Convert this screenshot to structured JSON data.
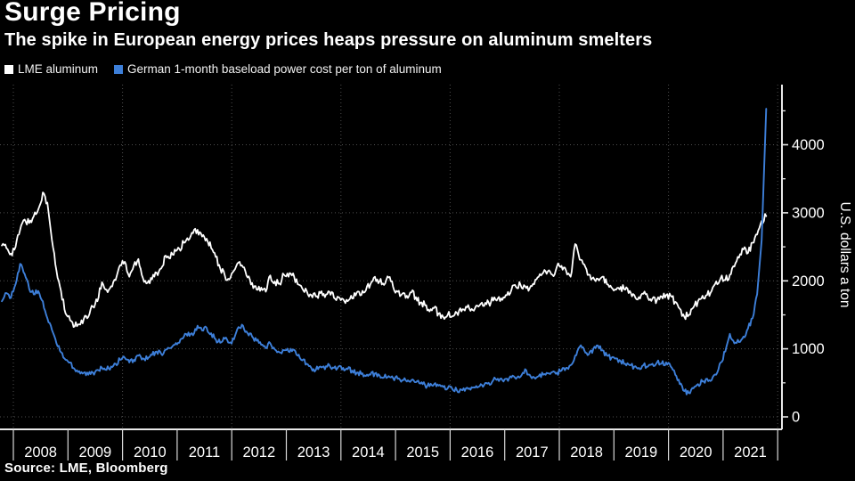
{
  "header": {
    "title": "Surge Pricing",
    "subtitle": "The spike in European energy prices heaps pressure on aluminum smelters"
  },
  "legend": [
    {
      "label": "LME aluminum",
      "color": "#ffffff"
    },
    {
      "label": "German 1-month baseload power cost per ton of aluminum",
      "color": "#3d7fd9"
    }
  ],
  "source": "Source: LME, Bloomberg",
  "colors": {
    "background": "#000000",
    "text": "#ffffff",
    "grid": "#4e4e4e",
    "axis": "#e8e8e8",
    "series_white": "#ffffff",
    "series_blue": "#3d7fd9"
  },
  "chart_data": {
    "type": "line",
    "title": "Surge Pricing",
    "subtitle": "The spike in European energy prices heaps pressure on aluminum smelters",
    "xlabel": "",
    "ylabel": "U.S. dollars a ton",
    "ylim": [
      0,
      4800
    ],
    "y_ticks": [
      0,
      1000,
      2000,
      3000,
      4000
    ],
    "y_minor_ticks": [
      500,
      1500,
      2500,
      3500,
      4500
    ],
    "x_tick_years": [
      2008,
      2009,
      2010,
      2011,
      2012,
      2013,
      2014,
      2015,
      2016,
      2017,
      2018,
      2019,
      2020,
      2021
    ],
    "grid_years": [
      2008,
      2010,
      2012,
      2014,
      2016,
      2018,
      2020,
      2022
    ],
    "x_start": 2007.79,
    "x_step_years": 0.0833333,
    "grid": true,
    "legend_position": "top-left",
    "series": [
      {
        "name": "LME aluminum",
        "color": "#ffffff",
        "values": [
          2520,
          2480,
          2400,
          2500,
          2750,
          2900,
          2850,
          2950,
          3050,
          3300,
          3150,
          2600,
          2150,
          1850,
          1520,
          1420,
          1330,
          1360,
          1440,
          1470,
          1620,
          1700,
          1980,
          1870,
          1920,
          2010,
          2230,
          2280,
          2060,
          2230,
          2320,
          2040,
          1970,
          2020,
          2120,
          2180,
          2370,
          2330,
          2460,
          2470,
          2560,
          2600,
          2700,
          2750,
          2650,
          2620,
          2480,
          2350,
          2180,
          2080,
          2020,
          2150,
          2270,
          2200,
          2050,
          1970,
          1870,
          1900,
          1840,
          2080,
          1990,
          1960,
          2090,
          2060,
          2110,
          1950,
          1890,
          1850,
          1790,
          1770,
          1820,
          1760,
          1840,
          1750,
          1760,
          1730,
          1700,
          1740,
          1830,
          1790,
          1860,
          1950,
          2060,
          1990,
          1940,
          2050,
          1910,
          1840,
          1810,
          1780,
          1830,
          1760,
          1680,
          1640,
          1550,
          1600,
          1520,
          1470,
          1500,
          1480,
          1530,
          1550,
          1620,
          1560,
          1600,
          1640,
          1630,
          1680,
          1710,
          1740,
          1720,
          1790,
          1870,
          1910,
          1940,
          1920,
          1890,
          1950,
          2060,
          2120,
          2140,
          2090,
          2210,
          2220,
          2150,
          2060,
          2540,
          2310,
          2240,
          2090,
          2050,
          2030,
          2060,
          1950,
          1900,
          1870,
          1910,
          1870,
          1850,
          1790,
          1760,
          1810,
          1750,
          1740,
          1720,
          1770,
          1790,
          1780,
          1690,
          1590,
          1470,
          1500,
          1610,
          1700,
          1780,
          1790,
          1850,
          1990,
          2040,
          2010,
          2090,
          2210,
          2340,
          2460,
          2410,
          2560,
          2680,
          2880,
          2950
        ]
      },
      {
        "name": "German 1-month baseload power cost per ton of aluminum",
        "color": "#3d7fd9",
        "values": [
          1700,
          1820,
          1750,
          1950,
          2250,
          2100,
          1880,
          1800,
          1850,
          1700,
          1450,
          1280,
          1080,
          950,
          840,
          800,
          700,
          670,
          650,
          620,
          650,
          690,
          720,
          690,
          740,
          780,
          840,
          870,
          800,
          840,
          900,
          860,
          850,
          910,
          960,
          930,
          990,
          1010,
          1060,
          1090,
          1180,
          1240,
          1200,
          1340,
          1270,
          1310,
          1230,
          1140,
          1090,
          1150,
          1090,
          1140,
          1320,
          1340,
          1230,
          1180,
          1120,
          1060,
          1010,
          1080,
          990,
          950,
          980,
          960,
          990,
          900,
          830,
          780,
          720,
          690,
          740,
          700,
          760,
          720,
          740,
          720,
          700,
          680,
          650,
          630,
          600,
          620,
          640,
          610,
          580,
          600,
          570,
          560,
          540,
          520,
          540,
          510,
          490,
          470,
          450,
          480,
          460,
          440,
          420,
          410,
          390,
          400,
          420,
          400,
          430,
          450,
          470,
          500,
          540,
          560,
          540,
          560,
          580,
          560,
          590,
          700,
          620,
          580,
          600,
          620,
          640,
          660,
          650,
          680,
          720,
          760,
          900,
          1030,
          980,
          920,
          1000,
          1050,
          980,
          900,
          870,
          860,
          820,
          780,
          760,
          740,
          720,
          760,
          740,
          780,
          800,
          780,
          800,
          740,
          620,
          480,
          380,
          350,
          420,
          480,
          520,
          560,
          540,
          620,
          800,
          960,
          1220,
          1080,
          1100,
          1180,
          1300,
          1450,
          1800,
          2600,
          4530
        ]
      }
    ]
  }
}
